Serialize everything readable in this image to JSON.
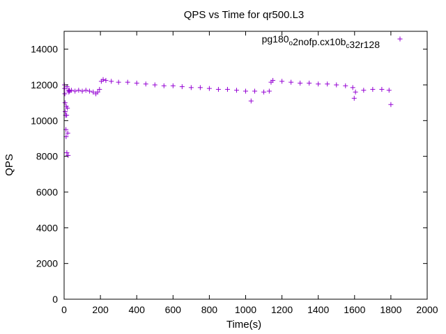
{
  "chart_data": {
    "type": "scatter",
    "title": "QPS vs Time for qr500.L3",
    "xlabel": "Time(s)",
    "ylabel": "QPS",
    "xlim": [
      0,
      2000
    ],
    "ylim": [
      0,
      15000
    ],
    "xticks": [
      "0",
      "200",
      "400",
      "600",
      "800",
      "1000",
      "1200",
      "1400",
      "1600",
      "1800",
      "2000"
    ],
    "yticks": [
      "0",
      "2000",
      "4000",
      "6000",
      "8000",
      "10000",
      "12000",
      "14000"
    ],
    "grid": false,
    "legend_position": "top-right",
    "marker": "plus",
    "series": [
      {
        "name": "pg180_o2nofp.cx10b_c32r128",
        "color": "#9400d3",
        "points": [
          [
            2,
            12000
          ],
          [
            3,
            11800
          ],
          [
            4,
            11500
          ],
          [
            5,
            11000
          ],
          [
            6,
            10500
          ],
          [
            8,
            10300
          ],
          [
            10,
            9500
          ],
          [
            11,
            9100
          ],
          [
            12,
            10800
          ],
          [
            14,
            10300
          ],
          [
            15,
            8200
          ],
          [
            16,
            11900
          ],
          [
            18,
            10700
          ],
          [
            20,
            9300
          ],
          [
            22,
            8050
          ],
          [
            24,
            11700
          ],
          [
            26,
            11600
          ],
          [
            28,
            11700
          ],
          [
            30,
            11650
          ],
          [
            40,
            11700
          ],
          [
            60,
            11650
          ],
          [
            80,
            11700
          ],
          [
            100,
            11650
          ],
          [
            120,
            11700
          ],
          [
            140,
            11650
          ],
          [
            160,
            11600
          ],
          [
            175,
            11500
          ],
          [
            185,
            11600
          ],
          [
            195,
            11750
          ],
          [
            205,
            12200
          ],
          [
            215,
            12300
          ],
          [
            230,
            12250
          ],
          [
            260,
            12200
          ],
          [
            300,
            12150
          ],
          [
            350,
            12150
          ],
          [
            400,
            12100
          ],
          [
            450,
            12050
          ],
          [
            500,
            12000
          ],
          [
            550,
            11950
          ],
          [
            600,
            11950
          ],
          [
            650,
            11900
          ],
          [
            700,
            11850
          ],
          [
            750,
            11850
          ],
          [
            800,
            11800
          ],
          [
            850,
            11750
          ],
          [
            900,
            11750
          ],
          [
            950,
            11700
          ],
          [
            1000,
            11650
          ],
          [
            1030,
            11100
          ],
          [
            1050,
            11650
          ],
          [
            1100,
            11600
          ],
          [
            1130,
            11650
          ],
          [
            1140,
            12150
          ],
          [
            1150,
            12250
          ],
          [
            1200,
            12200
          ],
          [
            1250,
            12150
          ],
          [
            1300,
            12100
          ],
          [
            1350,
            12100
          ],
          [
            1400,
            12050
          ],
          [
            1450,
            12050
          ],
          [
            1500,
            12000
          ],
          [
            1550,
            11950
          ],
          [
            1590,
            11850
          ],
          [
            1598,
            11250
          ],
          [
            1605,
            11600
          ],
          [
            1650,
            11700
          ],
          [
            1700,
            11750
          ],
          [
            1750,
            11750
          ],
          [
            1790,
            11700
          ],
          [
            1800,
            10900
          ]
        ]
      }
    ]
  }
}
